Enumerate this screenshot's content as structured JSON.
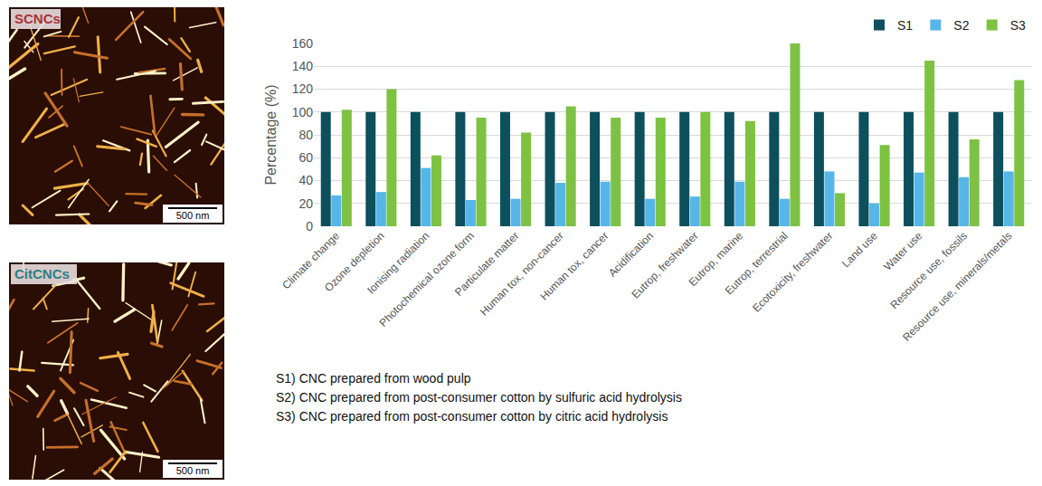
{
  "chart_data": {
    "type": "bar",
    "y_label": "Percentage (%)",
    "categories": [
      "Climate change",
      "Ozone depletion",
      "Ionising radiation",
      "Photochemical ozone form",
      "Particulate matter",
      "Human tox, non-cancer",
      "Human tox, cancer",
      "Acidification",
      "Eutrop, freshwater",
      "Eutrop, marine",
      "Eutrop, terrestrial",
      "Ecotoxicity, freshwater",
      "Land use",
      "Water use",
      "Resource use, fossils",
      "Resource use, minerals/metals"
    ],
    "series": [
      {
        "name": "S1",
        "color": "#0d4f5c",
        "values": [
          100,
          100,
          100,
          100,
          100,
          100,
          100,
          100,
          100,
          100,
          100,
          100,
          100,
          100,
          100,
          100
        ]
      },
      {
        "name": "S2",
        "color": "#56b6e8",
        "values": [
          27,
          30,
          51,
          23,
          24,
          38,
          39,
          24,
          26,
          39,
          24,
          48,
          20,
          47,
          43,
          48
        ]
      },
      {
        "name": "S3",
        "color": "#7dc242",
        "values": [
          102,
          120,
          62,
          95,
          82,
          105,
          95,
          95,
          100,
          92,
          160,
          29,
          71,
          145,
          76,
          128
        ]
      }
    ],
    "ylim": [
      0,
      160
    ],
    "yticks": [
      0,
      20,
      40,
      60,
      80,
      100,
      120,
      140,
      160
    ],
    "grid": true,
    "legend": "top right"
  },
  "notes": [
    "S1) CNC prepared from wood pulp",
    "S2) CNC prepared from post-consumer cotton by sulfuric acid hydrolysis",
    "S3) CNC prepared from post-consumer cotton by citric acid hydrolysis"
  ],
  "images": [
    {
      "label": "SCNCs",
      "label_color": "#a8323a",
      "scale_bar": "500 nm"
    },
    {
      "label": "CitCNCs",
      "label_color": "#2a7f86",
      "scale_bar": "500 nm"
    }
  ]
}
